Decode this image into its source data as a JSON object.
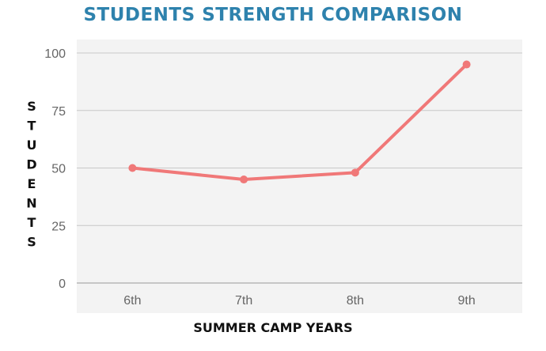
{
  "chart_data": {
    "type": "line",
    "title": "STUDENTS STRENGTH COMPARISON",
    "xlabel": "SUMMER CAMP YEARS",
    "ylabel": "STUDENTS",
    "categories": [
      "6th",
      "7th",
      "8th",
      "9th"
    ],
    "series": [
      {
        "values": [
          50,
          45,
          48,
          95
        ]
      }
    ],
    "ylim": [
      0,
      100
    ],
    "yticks": [
      0,
      25,
      50,
      75,
      100
    ],
    "grid": true,
    "colors": {
      "title": "#2e82ad",
      "line": "#f07878",
      "plot_background": "#f3f3f3",
      "gridline": "#c8c8c8"
    }
  }
}
